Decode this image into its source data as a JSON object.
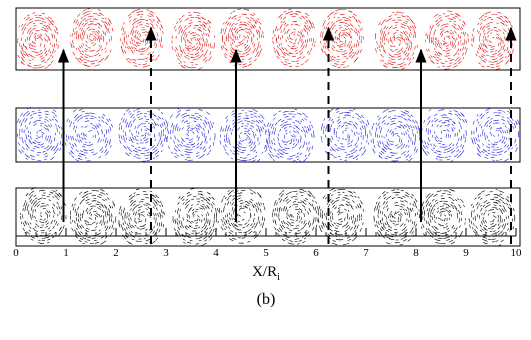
{
  "figure": {
    "panels": [
      {
        "color": "#e01010"
      },
      {
        "color": "#2020e0"
      },
      {
        "color": "#000000"
      }
    ],
    "arrows": [
      {
        "x": 0.95,
        "style": "solid"
      },
      {
        "x": 2.7,
        "style": "dashed"
      },
      {
        "x": 4.4,
        "style": "solid"
      },
      {
        "x": 6.25,
        "style": "dashed"
      },
      {
        "x": 8.1,
        "style": "solid"
      },
      {
        "x": 9.9,
        "style": "dashed"
      }
    ],
    "xlim": [
      0,
      10
    ],
    "xticks": [
      0,
      1,
      2,
      3,
      4,
      5,
      6,
      7,
      8,
      9,
      10
    ],
    "minor_tick_step": 0.2,
    "x_label": "X/R",
    "x_label_subscript": "i",
    "caption": "(b)"
  }
}
